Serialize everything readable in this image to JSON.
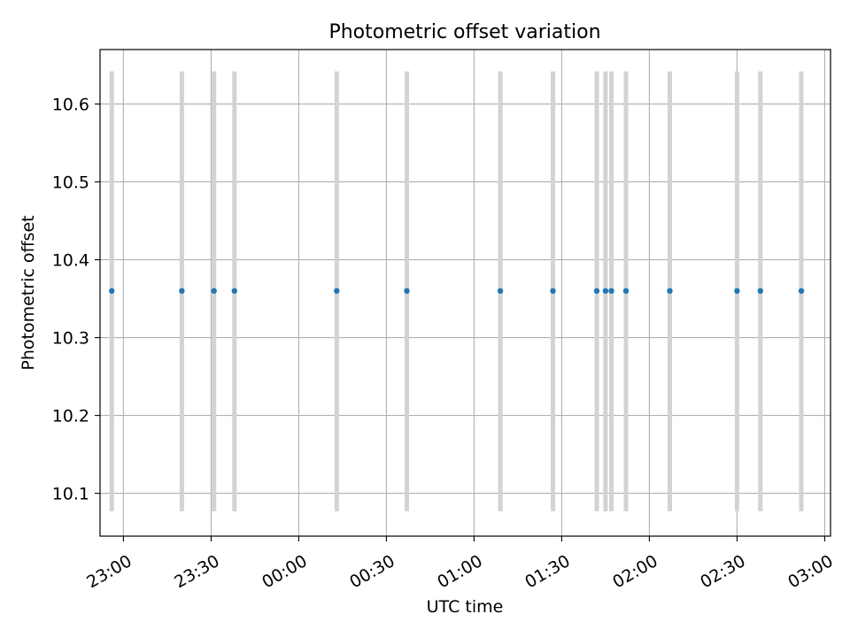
{
  "chart_data": {
    "type": "scatter",
    "title": "Photometric offset variation",
    "xlabel": "UTC time",
    "ylabel": "Photometric offset",
    "x_type": "time",
    "x_range": [
      "22:52",
      "03:02"
    ],
    "ylim": [
      10.045,
      10.67
    ],
    "grid": true,
    "x_ticks": [
      "23:00",
      "23:30",
      "00:00",
      "00:30",
      "01:00",
      "01:30",
      "02:00",
      "02:30",
      "03:00"
    ],
    "y_ticks": [
      "10.1",
      "10.2",
      "10.3",
      "10.4",
      "10.5",
      "10.6"
    ],
    "error_bar_range": [
      10.077,
      10.642
    ],
    "colors": {
      "points": "#1f77b4",
      "error_bars": "#d3d3d3",
      "grid": "#b0b0b0"
    },
    "series": [
      {
        "points": [
          {
            "x": "22:56",
            "y": 10.36
          },
          {
            "x": "23:20",
            "y": 10.36
          },
          {
            "x": "23:31",
            "y": 10.36
          },
          {
            "x": "23:38",
            "y": 10.36
          },
          {
            "x": "00:13",
            "y": 10.36
          },
          {
            "x": "00:37",
            "y": 10.36
          },
          {
            "x": "01:09",
            "y": 10.36
          },
          {
            "x": "01:27",
            "y": 10.36
          },
          {
            "x": "01:42",
            "y": 10.36
          },
          {
            "x": "01:45",
            "y": 10.36
          },
          {
            "x": "01:47",
            "y": 10.36
          },
          {
            "x": "01:52",
            "y": 10.36
          },
          {
            "x": "02:07",
            "y": 10.36
          },
          {
            "x": "02:30",
            "y": 10.36
          },
          {
            "x": "02:38",
            "y": 10.36
          },
          {
            "x": "02:52",
            "y": 10.36
          }
        ]
      }
    ]
  }
}
